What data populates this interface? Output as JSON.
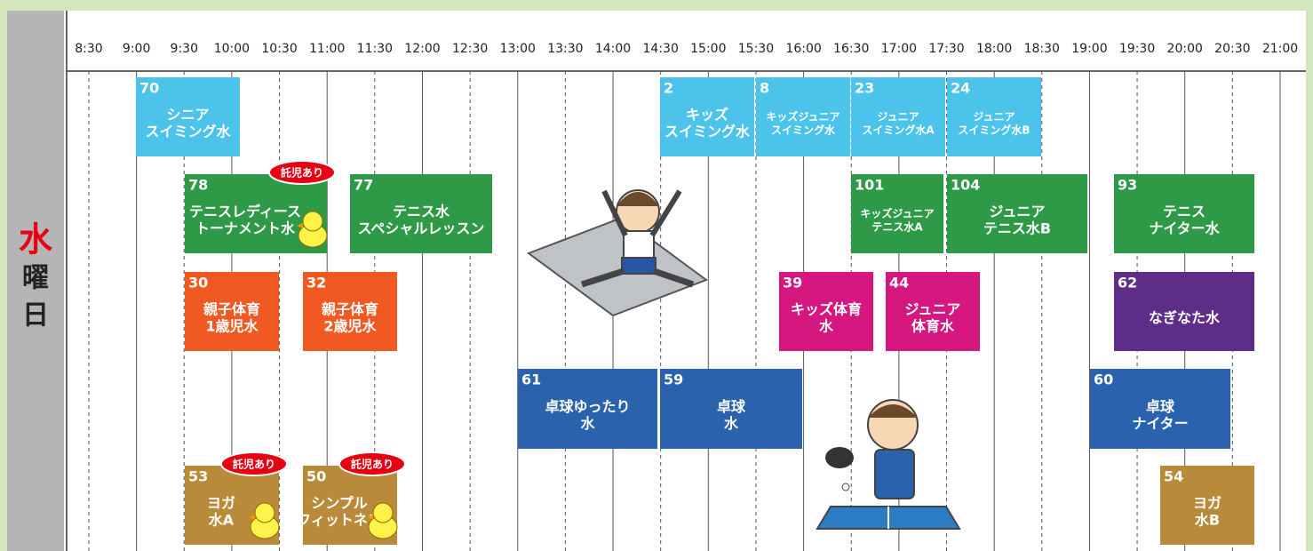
{
  "day": [
    "水",
    "曜",
    "日"
  ],
  "times": [
    "8:30",
    "9:00",
    "9:30",
    "10:00",
    "10:30",
    "11:00",
    "11:30",
    "12:00",
    "12:30",
    "13:00",
    "13:30",
    "14:00",
    "14:30",
    "15:00",
    "15:30",
    "16:00",
    "16:30",
    "17:00",
    "17:30",
    "18:00",
    "18:30",
    "19:00",
    "19:30",
    "20:00",
    "20:30",
    "21:00"
  ],
  "classes": [
    {
      "number": "70",
      "lines": [
        "シニア",
        "スイミング水"
      ],
      "color": "#4cc3ea"
    },
    {
      "number": "2",
      "lines": [
        "キッズ",
        "スイミング水"
      ],
      "color": "#4cc3ea"
    },
    {
      "number": "8",
      "lines": [
        "キッズジュニア",
        "スイミング水"
      ],
      "color": "#4cc3ea"
    },
    {
      "number": "23",
      "lines": [
        "ジュニア",
        "スイミング水A"
      ],
      "color": "#4cc3ea"
    },
    {
      "number": "24",
      "lines": [
        "ジュニア",
        "スイミング水B"
      ],
      "color": "#4cc3ea"
    },
    {
      "number": "78",
      "lines": [
        "テニスレディース",
        "トーナメント水"
      ],
      "color": "#2e9a48",
      "badge": "託児あり"
    },
    {
      "number": "77",
      "lines": [
        "テニス水",
        "スペシャルレッスン"
      ],
      "color": "#2e9a48"
    },
    {
      "number": "101",
      "lines": [
        "キッズジュニア",
        "テニス水A"
      ],
      "color": "#2e9a48"
    },
    {
      "number": "104",
      "lines": [
        "ジュニア",
        "テニス水B"
      ],
      "color": "#2e9a48"
    },
    {
      "number": "93",
      "lines": [
        "テニス",
        "ナイター水"
      ],
      "color": "#2e9a48"
    },
    {
      "number": "30",
      "lines": [
        "親子体育",
        "1歳児水"
      ],
      "color": "#f05a22"
    },
    {
      "number": "32",
      "lines": [
        "親子体育",
        "2歳児水"
      ],
      "color": "#f05a22"
    },
    {
      "number": "39",
      "lines": [
        "キッズ体育",
        "水"
      ],
      "color": "#d6177f"
    },
    {
      "number": "44",
      "lines": [
        "ジュニア",
        "体育水"
      ],
      "color": "#d6177f"
    },
    {
      "number": "62",
      "lines": [
        "なぎなた水"
      ],
      "color": "#5d2d87"
    },
    {
      "number": "61",
      "lines": [
        "卓球ゆったり",
        "水"
      ],
      "color": "#2b62ae"
    },
    {
      "number": "59",
      "lines": [
        "卓球",
        "水"
      ],
      "color": "#2b62ae"
    },
    {
      "number": "60",
      "lines": [
        "卓球",
        "ナイター"
      ],
      "color": "#2b62ae"
    },
    {
      "number": "53",
      "lines": [
        "ヨガ",
        "水A"
      ],
      "color": "#b98a3a",
      "badge": "託児あり"
    },
    {
      "number": "50",
      "lines": [
        "シンプル",
        "フィットネス"
      ],
      "color": "#b98a3a",
      "badge": "託児あり"
    },
    {
      "number": "54",
      "lines": [
        "ヨガ",
        "水B"
      ],
      "color": "#b98a3a"
    }
  ]
}
